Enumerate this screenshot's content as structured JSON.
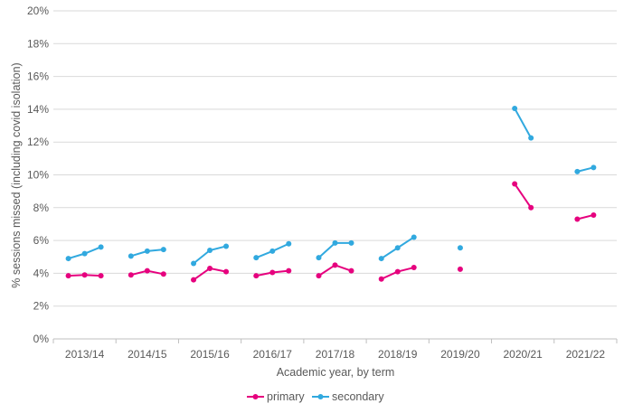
{
  "chart_data": {
    "type": "line",
    "title": "",
    "xlabel": "Academic year, by term",
    "ylabel": "% sessions missed (including covid isolation)",
    "ylim": [
      0,
      20
    ],
    "yticks": [
      "0%",
      "2%",
      "4%",
      "6%",
      "8%",
      "10%",
      "12%",
      "14%",
      "16%",
      "18%",
      "20%"
    ],
    "grid": true,
    "legend_position": "bottom",
    "categories": [
      "2013/14",
      "2014/15",
      "2015/16",
      "2016/17",
      "2017/18",
      "2018/19",
      "2019/20",
      "2020/21",
      "2021/22"
    ],
    "series": [
      {
        "name": "primary",
        "color": "#e6007e",
        "groups": [
          [
            3.85,
            3.9,
            3.85
          ],
          [
            3.9,
            4.15,
            3.95
          ],
          [
            3.6,
            4.3,
            4.1
          ],
          [
            3.85,
            4.05,
            4.15
          ],
          [
            3.85,
            4.5,
            4.15
          ],
          [
            3.65,
            4.1,
            4.35
          ],
          [
            4.25
          ],
          [
            9.45,
            8.0
          ],
          [
            7.3,
            7.55
          ]
        ]
      },
      {
        "name": "secondary",
        "color": "#31a9df",
        "groups": [
          [
            4.9,
            5.2,
            5.6
          ],
          [
            5.05,
            5.35,
            5.45
          ],
          [
            4.6,
            5.4,
            5.65
          ],
          [
            4.95,
            5.35,
            5.8
          ],
          [
            4.95,
            5.85,
            5.85
          ],
          [
            4.9,
            5.55,
            6.2
          ],
          [
            5.55
          ],
          [
            14.05,
            12.25
          ],
          [
            10.2,
            10.45
          ]
        ]
      }
    ]
  }
}
